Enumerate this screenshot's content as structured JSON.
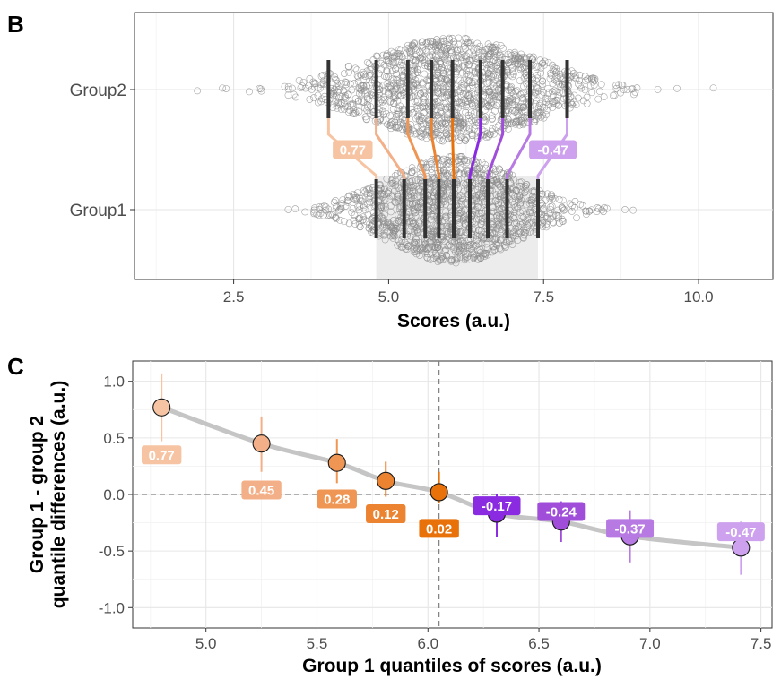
{
  "chart_data": [
    {
      "panel": "B",
      "type": "scatter",
      "subtype": "beeswarm",
      "xlabel": "Scores (a.u.)",
      "categories": [
        "Group2",
        "Group1"
      ],
      "xlim": [
        0.9,
        11.2
      ],
      "xticks": [
        2.5,
        5.0,
        7.5,
        10.0
      ],
      "xtick_labels": [
        "2.5",
        "5.0",
        "7.5",
        "10.0"
      ],
      "grid": true,
      "deciles": {
        "Group1": [
          4.8,
          5.25,
          5.59,
          5.81,
          6.05,
          6.31,
          6.6,
          6.91,
          7.41
        ],
        "Group2": [
          4.03,
          4.8,
          5.31,
          5.69,
          6.03,
          6.48,
          6.84,
          7.28,
          7.88
        ]
      },
      "shaded_interval": [
        4.8,
        7.41
      ],
      "annotations": [
        {
          "text": "0.77",
          "x": 4.42,
          "decile_index": 0
        },
        {
          "text": "-0.47",
          "x": 7.65,
          "decile_index": 8
        }
      ]
    },
    {
      "panel": "C",
      "type": "scatter",
      "xlabel": "Group 1 quantiles of scores (a.u.)",
      "ylabel_lines": [
        "Group 1 - group 2",
        "quantile differences (a.u.)"
      ],
      "xlim": [
        4.67,
        7.55
      ],
      "ylim": [
        -1.18,
        1.18
      ],
      "xticks": [
        5.0,
        5.5,
        6.0,
        6.5,
        7.0,
        7.5
      ],
      "xtick_labels": [
        "5.0",
        "5.5",
        "6.0",
        "6.5",
        "7.0",
        "7.5"
      ],
      "yticks": [
        -1.0,
        -0.5,
        0.0,
        0.5,
        1.0
      ],
      "ytick_labels": [
        "-1.0",
        "-0.5",
        "0.0",
        "0.5",
        "1.0"
      ],
      "grid": true,
      "reference_lines": {
        "y": 0.0,
        "x": 6.05
      },
      "x": [
        4.8,
        5.25,
        5.59,
        5.81,
        6.05,
        6.31,
        6.6,
        6.91,
        7.41
      ],
      "y": [
        0.77,
        0.45,
        0.28,
        0.12,
        0.02,
        -0.17,
        -0.24,
        -0.37,
        -0.47
      ],
      "ci_low": [
        0.47,
        0.2,
        0.1,
        -0.02,
        -0.08,
        -0.38,
        -0.42,
        -0.6,
        -0.71
      ],
      "ci_high": [
        1.07,
        0.69,
        0.49,
        0.29,
        0.2,
        0.0,
        -0.06,
        -0.14,
        -0.24
      ],
      "labels": [
        "0.77",
        "0.45",
        "0.28",
        "0.12",
        "0.02",
        "-0.17",
        "-0.24",
        "-0.37",
        "-0.47"
      ],
      "label_y": [
        0.35,
        0.04,
        -0.04,
        -0.17,
        -0.3,
        -0.1,
        -0.15,
        -0.3,
        -0.33
      ],
      "colors": [
        "#f6c4a2",
        "#f3b088",
        "#ef9654",
        "#ec8331",
        "#e8710a",
        "#8a2be2",
        "#a04ed9",
        "#b779e2",
        "#cda1ee"
      ]
    }
  ]
}
